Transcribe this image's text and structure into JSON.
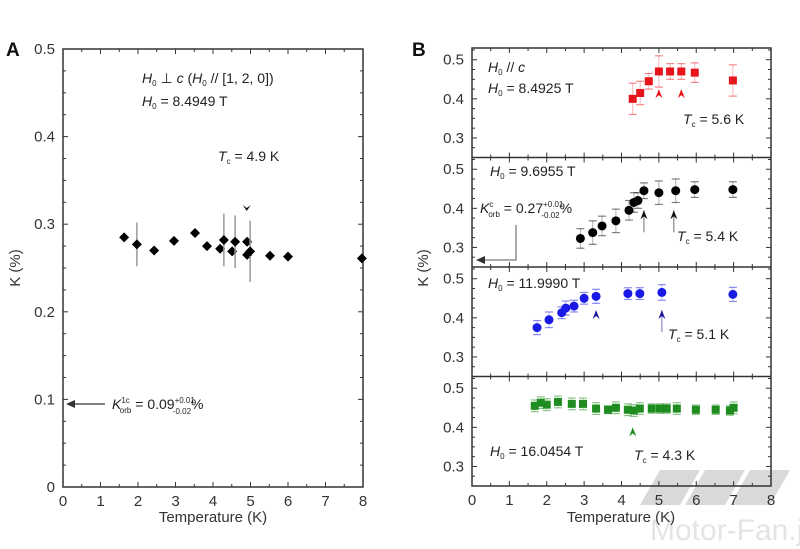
{
  "chart_data": [
    {
      "panel": "A",
      "type": "scatter",
      "xlabel": "Temperature (K)",
      "ylabel": "K (%)",
      "xlim": [
        0,
        8
      ],
      "ylim": [
        0,
        0.5
      ],
      "xticks": [
        "0",
        "1",
        "2",
        "3",
        "4",
        "5",
        "6",
        "7",
        "8"
      ],
      "yticks": [
        "0",
        "0.1",
        "0.2",
        "0.3",
        "0.4",
        "0.5"
      ],
      "annotations": {
        "field_dir": "H₀ ⊥ c (H₀ // [1, 2, 0])",
        "field_dir_parts": {
          "h": "H",
          "sub": "0",
          "perp": " ⊥ ",
          "c": "c",
          "paren_open": " (",
          "h2": "H",
          "sub2": "0",
          "rest": " // [1, 2, 0])"
        },
        "field_value": {
          "h": "H",
          "sub": "0",
          "text": " = 8.4949 T"
        },
        "tc": {
          "t": "T",
          "sub": "c",
          "text": " = 4.9 K"
        },
        "korb": {
          "k": "K",
          "sup": "1c",
          "sub": "orb",
          "value": " = 0.09",
          "err_plus": "+0.01",
          "err_minus": "-0.02",
          "unit": "%"
        },
        "korb_value": 0.09
      },
      "tc_marker_T": 4.9,
      "series": [
        {
          "name": "H0 = 8.4949 T",
          "marker": "diamond",
          "color": "#000000",
          "x": [
            1.63,
            1.97,
            2.43,
            2.96,
            3.52,
            3.84,
            4.19,
            4.29,
            4.51,
            4.59,
            4.91,
            4.91,
            4.99,
            5.52,
            6.0,
            7.97
          ],
          "y": [
            0.285,
            0.277,
            0.27,
            0.281,
            0.29,
            0.275,
            0.272,
            0.282,
            0.269,
            0.28,
            0.28,
            0.265,
            0.269,
            0.264,
            0.263,
            0.261
          ],
          "err": [
            0,
            0.025,
            0,
            0,
            0,
            0,
            0,
            0.03,
            0,
            0.03,
            0,
            0,
            0.035,
            0,
            0,
            0
          ]
        }
      ]
    },
    {
      "panel": "B",
      "type": "scatter",
      "xlabel": "Temperature (K)",
      "ylabel": "K (%)",
      "xlim": [
        0,
        8
      ],
      "ylim": [
        0.25,
        0.53
      ],
      "xticks": [
        "0",
        "1",
        "2",
        "3",
        "4",
        "5",
        "6",
        "7",
        "8"
      ],
      "yticks": [
        "0.3",
        "0.4",
        "0.5"
      ],
      "subpanels": [
        {
          "field_label": {
            "h": "H",
            "sub": "0",
            "text": " = 8.4925 T"
          },
          "orientation": {
            "h": "H",
            "sub": "0",
            "text": " // ",
            "c": "c"
          },
          "tc": {
            "t": "T",
            "sub": "c",
            "text": " = 5.6 K"
          },
          "tc_arrows_T": [
            5.0,
            5.6
          ],
          "series": {
            "name": "H0 = 8.4925 T",
            "marker": "square",
            "color": "#e8141c",
            "x": [
              4.3,
              4.5,
              4.73,
              5.0,
              5.3,
              5.6,
              5.96,
              6.98
            ],
            "y": [
              0.4,
              0.415,
              0.445,
              0.47,
              0.47,
              0.47,
              0.467,
              0.447
            ],
            "err": [
              0.04,
              0.03,
              0.02,
              0.04,
              0.02,
              0.02,
              0.025,
              0.04
            ]
          }
        },
        {
          "field_label": {
            "h": "H",
            "sub": "0",
            "text": " = 9.6955 T"
          },
          "tc": {
            "t": "T",
            "sub": "c",
            "text": " = 5.4 K"
          },
          "korb": {
            "k": "K",
            "sup": "c",
            "sub": "orb",
            "value": " = 0.27",
            "err_plus": "+0.01",
            "err_minus": "-0.02",
            "unit": "%"
          },
          "korb_value": 0.27,
          "tc_arrows_T": [
            4.6,
            5.4
          ],
          "series": {
            "name": "H0 = 9.6955 T",
            "marker": "circle",
            "color": "#000000",
            "x": [
              2.9,
              3.23,
              3.48,
              3.85,
              4.2,
              4.33,
              4.44,
              4.6,
              5.0,
              5.45,
              5.96,
              6.98
            ],
            "y": [
              0.323,
              0.338,
              0.355,
              0.368,
              0.395,
              0.415,
              0.42,
              0.445,
              0.44,
              0.445,
              0.448,
              0.448
            ],
            "err": [
              0.025,
              0.03,
              0.025,
              0.03,
              0.025,
              0.025,
              0.02,
              0.02,
              0.03,
              0.03,
              0.02,
              0.02
            ]
          }
        },
        {
          "field_label": {
            "h": "H",
            "sub": "0",
            "text": " = 11.9990 T"
          },
          "tc": {
            "t": "T",
            "sub": "c",
            "text": " = 5.1 K"
          },
          "tc_arrows_T": [
            3.32,
            5.08
          ],
          "series": {
            "name": "H0 = 11.9990 T",
            "marker": "circle",
            "color": "#1a1ae6",
            "x": [
              1.74,
              2.06,
              2.4,
              2.51,
              2.73,
              3.0,
              3.32,
              4.17,
              4.49,
              5.08,
              6.98
            ],
            "y": [
              0.375,
              0.395,
              0.413,
              0.425,
              0.43,
              0.45,
              0.455,
              0.462,
              0.462,
              0.465,
              0.46
            ],
            "err": [
              0.018,
              0.02,
              0.015,
              0.018,
              0.015,
              0.015,
              0.018,
              0.015,
              0.015,
              0.02,
              0.018
            ]
          }
        },
        {
          "field_label": {
            "h": "H",
            "sub": "0",
            "text": " = 16.0454 T"
          },
          "tc": {
            "t": "T",
            "sub": "c",
            "text": " = 4.3 K"
          },
          "tc_arrows_T": [
            4.3
          ],
          "series": {
            "name": "H0 = 16.0454 T",
            "marker": "square",
            "color": "#1e8c1e",
            "x": [
              1.68,
              1.84,
              2.0,
              2.3,
              2.67,
              2.97,
              3.32,
              3.64,
              3.85,
              4.17,
              4.33,
              4.49,
              4.81,
              5.03,
              5.21,
              5.48,
              5.99,
              6.52,
              6.9,
              7.0
            ],
            "y": [
              0.455,
              0.463,
              0.458,
              0.465,
              0.46,
              0.46,
              0.448,
              0.445,
              0.45,
              0.445,
              0.443,
              0.448,
              0.448,
              0.448,
              0.448,
              0.448,
              0.445,
              0.445,
              0.443,
              0.45
            ],
            "err": [
              0.015,
              0.015,
              0.015,
              0.015,
              0.015,
              0.015,
              0.015,
              0.01,
              0.015,
              0.015,
              0.015,
              0.015,
              0.012,
              0.012,
              0.012,
              0.015,
              0.012,
              0.012,
              0.012,
              0.015
            ]
          }
        }
      ]
    }
  ],
  "watermark": "Motor-Fan.jp"
}
